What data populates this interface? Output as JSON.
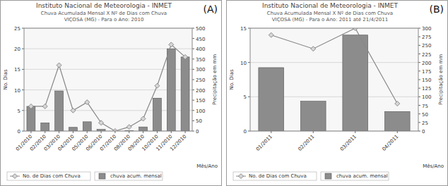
{
  "chart_data": [
    {
      "type": "bar",
      "title": "Instituto Nacional de Meteorologia - INMET",
      "subtitle": "Chuva Acumulada Mensal X Nº de Dias com Chuva",
      "annotations": [
        "VIÇOSA (MG) - Para o Ano: 2010",
        "(A)"
      ],
      "x_label": "Mês/Ano",
      "y_label": "No. Dias",
      "y2_label": "Precipitação em mm",
      "categories": [
        "01/2010",
        "02/2010",
        "03/2010",
        "04/2010",
        "05/2010",
        "06/2010",
        "07/2010",
        "08/2010",
        "09/2010",
        "10/2010",
        "11/2010",
        "12/2010"
      ],
      "series": [
        {
          "name": "No. de Dias com Chuva",
          "type": "line",
          "marker": "diamond",
          "color": "#888888",
          "values": [
            6,
            6,
            16,
            5,
            7,
            2,
            0,
            1,
            3,
            11,
            21,
            18
          ]
        },
        {
          "name": "chuva acum. mensal",
          "type": "bar",
          "axis": "y2",
          "color": "#8c8c8c",
          "values": [
            120,
            40,
            195,
            18,
            45,
            8,
            0,
            2,
            20,
            160,
            400,
            360
          ]
        }
      ],
      "ylim": [
        0,
        25
      ],
      "yticks": [
        0,
        5,
        10,
        15,
        20,
        25
      ],
      "y2lim": [
        0,
        500
      ],
      "y2ticks": [
        0,
        50,
        100,
        150,
        200,
        250,
        300,
        350,
        400,
        450,
        500
      ],
      "grid": true,
      "legend": "bottom"
    },
    {
      "type": "bar",
      "title": "Instituto Nacional de Meteorologia - INMET",
      "subtitle": "Chuva Acumulada Mensal X Nº de Dias com Chuva",
      "annotations": [
        "VIÇOSA (MG) - Para o Ano: 2011 até 21/4/2011",
        "(B)"
      ],
      "x_label": "Mês/Ano",
      "y_label": "No. Dias",
      "y2_label": "Precipitação em mm",
      "categories": [
        "01/2011",
        "02/2011",
        "03/2011",
        "04/2011"
      ],
      "series": [
        {
          "name": "No. de Dias com Chuva",
          "type": "line",
          "marker": "diamond",
          "color": "#888888",
          "values": [
            14,
            12,
            15,
            4
          ]
        },
        {
          "name": "chuva acum. mensal",
          "type": "bar",
          "axis": "y2",
          "color": "#8c8c8c",
          "values": [
            185,
            87,
            280,
            57
          ]
        }
      ],
      "ylim": [
        0,
        15
      ],
      "yticks": [
        0,
        5,
        10,
        15
      ],
      "y2lim": [
        0,
        300
      ],
      "y2ticks": [
        0,
        25,
        50,
        75,
        100,
        125,
        150,
        175,
        200,
        225,
        250,
        275,
        300
      ],
      "grid": true,
      "legend": "bottom"
    }
  ]
}
